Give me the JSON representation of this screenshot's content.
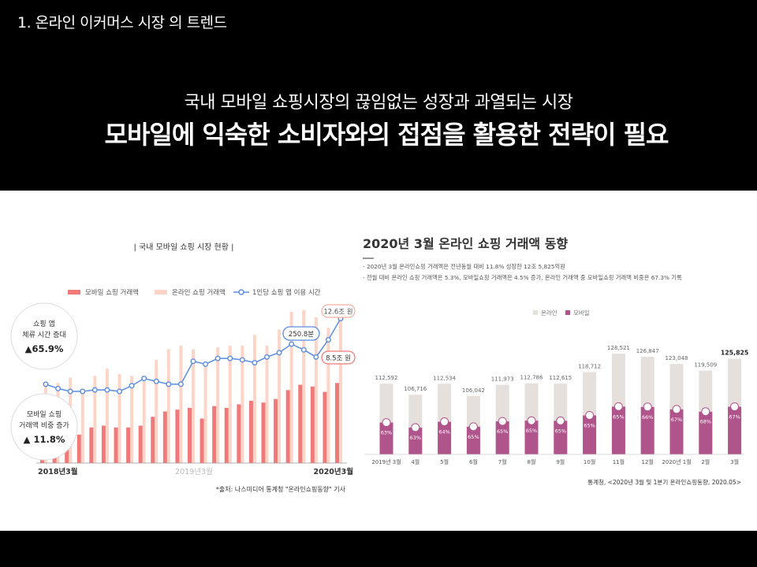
{
  "slide": {
    "title": "1. 온라인 이커머스 시장 의 트렌드",
    "headline_sub": "국내 모바일 쇼핑시장의 끊임없는 성장과 과열되는 시장",
    "headline_main": "모바일에 익숙한 소비자와의 접점을 활용한 전략이 필요"
  },
  "colors": {
    "mobile_bar": "#f07a7a",
    "online_bar": "#fcd5c8",
    "line": "#5b8de0",
    "right_online": "#e6e0dc",
    "right_mobile": "#b0548c",
    "dark": "#333333"
  },
  "chart_data": [
    {
      "type": "bar",
      "title": "| 국내 모바일 쇼핑 시장 현황 |",
      "legend": [
        "모바일 쇼핑 거래액",
        "온라인 쇼핑 거래액",
        "1인당 쇼핑 앱 이용 시간"
      ],
      "x_labels": [
        "2018년3월",
        "2019년3월",
        "2020년3월"
      ],
      "series": [
        {
          "name": "온라인 쇼핑 거래액",
          "values": [
            8.4,
            8.5,
            8.8,
            8.1,
            8.9,
            9.3,
            9.0,
            8.9,
            8.6,
            9.8,
            10.4,
            10.6,
            10.4,
            9.6,
            10.5,
            10.6,
            10.6,
            11.2,
            10.6,
            11.5,
            12.5,
            12.6,
            12.2,
            11.6,
            12.6
          ]
        },
        {
          "name": "모바일 쇼핑 거래액",
          "values": [
            5.4,
            5.5,
            5.9,
            5.6,
            6.0,
            6.1,
            6.0,
            6.0,
            6.1,
            6.6,
            6.9,
            7.0,
            7.1,
            6.5,
            7.2,
            7.1,
            7.3,
            7.5,
            7.4,
            7.6,
            8.1,
            8.4,
            8.3,
            8.0,
            8.5
          ]
        },
        {
          "name": "1인당 쇼핑 앱 이용 시간",
          "values": [
            205,
            202,
            200,
            200,
            201,
            201,
            200,
            204,
            209,
            207,
            205,
            205,
            221,
            219,
            223,
            223,
            222,
            220,
            224,
            227,
            233,
            229,
            224,
            236,
            250.8
          ]
        }
      ],
      "callouts": [
        {
          "label": "쇼핑 앱",
          "line2": "체류 시간 증대",
          "value": "▲65.9%"
        },
        {
          "label": "모바일 쇼핑",
          "line2": "거래액 비중 증가",
          "value": "▲ 11.8%"
        }
      ],
      "annotations": [
        "12.6조 원",
        "250.8분",
        "8.5조 원"
      ],
      "source": "*출처: 나스미디어 통계청 \"온라인쇼핑동향\" 기사"
    },
    {
      "type": "bar",
      "title": "2020년 3월 온라인 쇼핑 거래액 동향",
      "notes": [
        "- 2020년 3월 온라인쇼핑 거래액은 전년동월 대비 11.8% 성장한 12조 5,825억원",
        "- 전월 대비 온라인 쇼핑 거래액은 5.3%, 모바일쇼핑 거래액은 4.5% 증가, 온라인 거래액 중 모바일쇼핑 거래액 비중은 67.3% 기록"
      ],
      "legend": [
        "온라인",
        "모바일"
      ],
      "categories": [
        "2019년 3월",
        "4월",
        "5월",
        "6월",
        "7월",
        "8월",
        "9월",
        "10월",
        "11월",
        "12월",
        "2020년 1월",
        "2월",
        "3월"
      ],
      "values": [
        112592,
        106716,
        112534,
        106042,
        111973,
        112786,
        112615,
        118712,
        128521,
        126847,
        123048,
        119509,
        125825
      ],
      "value_labels": [
        "112,592",
        "106,716",
        "112,534",
        "106,042",
        "111,973",
        "112,786",
        "112,615",
        "118,712",
        "128,521",
        "126,847",
        "123,048",
        "119,509",
        "125,825"
      ],
      "mobile_share": [
        63,
        63,
        64,
        65,
        65,
        65,
        65,
        65,
        65,
        66,
        67,
        68,
        67
      ],
      "share_labels": [
        "63%",
        "63%",
        "64%",
        "65%",
        "65%",
        "65%",
        "65%",
        "65%",
        "65%",
        "66%",
        "67%",
        "68%",
        "67%"
      ],
      "source": "통계청, <2020년 3월 및 1분기 온라인쇼핑동향, 2020.05>"
    }
  ]
}
